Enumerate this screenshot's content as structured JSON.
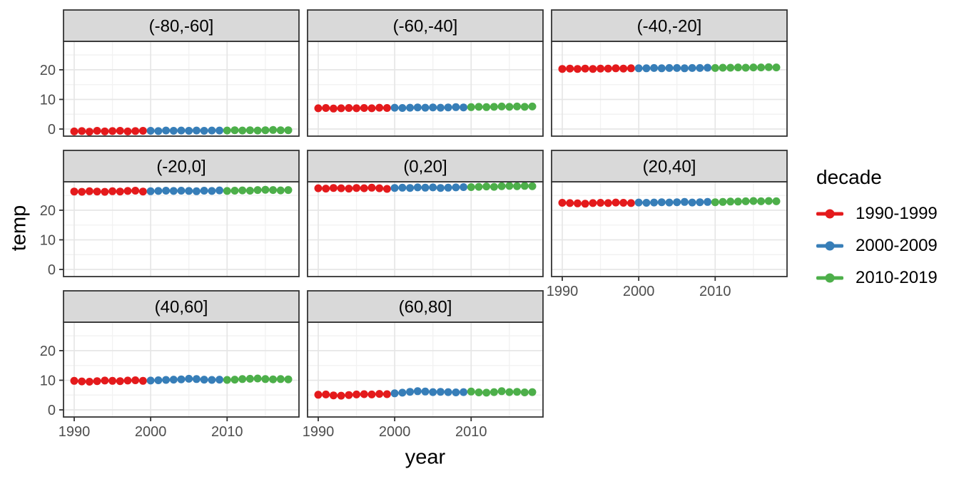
{
  "chart_data": {
    "type": "scatter",
    "title": "",
    "xlabel": "year",
    "ylabel": "temp",
    "facet_labels": [
      "(-80,-60]",
      "(-60,-40]",
      "(-40,-20]",
      "(-20,0]",
      "(0,20]",
      "(20,40]",
      "(40,60]",
      "(60,80]"
    ],
    "x": [
      1990,
      1991,
      1992,
      1993,
      1994,
      1995,
      1996,
      1997,
      1998,
      1999,
      2000,
      2001,
      2002,
      2003,
      2004,
      2005,
      2006,
      2007,
      2008,
      2009,
      2010,
      2011,
      2012,
      2013,
      2014,
      2015,
      2016,
      2017,
      2018
    ],
    "facets": [
      {
        "label": "(-80,-60]",
        "values": [
          -0.8,
          -0.7,
          -0.9,
          -0.6,
          -0.8,
          -0.7,
          -0.6,
          -0.8,
          -0.7,
          -0.6,
          -0.6,
          -0.7,
          -0.5,
          -0.6,
          -0.5,
          -0.6,
          -0.5,
          -0.6,
          -0.5,
          -0.5,
          -0.5,
          -0.4,
          -0.5,
          -0.4,
          -0.5,
          -0.4,
          -0.3,
          -0.4,
          -0.4
        ]
      },
      {
        "label": "(-60,-40]",
        "values": [
          7.0,
          7.1,
          6.9,
          7.0,
          7.1,
          7.0,
          7.1,
          7.0,
          7.2,
          7.1,
          7.2,
          7.1,
          7.2,
          7.3,
          7.2,
          7.3,
          7.2,
          7.3,
          7.4,
          7.3,
          7.4,
          7.5,
          7.4,
          7.5,
          7.6,
          7.5,
          7.6,
          7.5,
          7.6
        ]
      },
      {
        "label": "(-40,-20]",
        "values": [
          20.3,
          20.4,
          20.3,
          20.4,
          20.3,
          20.4,
          20.4,
          20.5,
          20.4,
          20.5,
          20.5,
          20.5,
          20.6,
          20.5,
          20.6,
          20.6,
          20.5,
          20.6,
          20.6,
          20.7,
          20.6,
          20.7,
          20.7,
          20.8,
          20.7,
          20.8,
          20.8,
          20.9,
          20.8
        ]
      },
      {
        "label": "(-20,0]",
        "values": [
          26.3,
          26.2,
          26.4,
          26.3,
          26.2,
          26.4,
          26.3,
          26.5,
          26.6,
          26.3,
          26.4,
          26.5,
          26.6,
          26.5,
          26.6,
          26.5,
          26.4,
          26.6,
          26.5,
          26.7,
          26.5,
          26.6,
          26.7,
          26.6,
          26.8,
          26.9,
          26.8,
          26.7,
          26.8
        ]
      },
      {
        "label": "(0,20]",
        "values": [
          27.4,
          27.3,
          27.5,
          27.4,
          27.3,
          27.5,
          27.4,
          27.6,
          27.4,
          27.2,
          27.5,
          27.6,
          27.5,
          27.7,
          27.6,
          27.7,
          27.5,
          27.6,
          27.7,
          27.8,
          27.8,
          27.9,
          28.0,
          27.9,
          28.1,
          28.2,
          28.1,
          28.2,
          28.1
        ]
      },
      {
        "label": "(20,40]",
        "values": [
          22.5,
          22.4,
          22.3,
          22.2,
          22.4,
          22.5,
          22.4,
          22.6,
          22.5,
          22.4,
          22.6,
          22.5,
          22.6,
          22.7,
          22.6,
          22.7,
          22.8,
          22.6,
          22.7,
          22.8,
          22.7,
          22.8,
          22.9,
          22.9,
          23.0,
          23.1,
          23.0,
          23.1,
          23.0
        ]
      },
      {
        "label": "(40,60]",
        "values": [
          9.8,
          9.6,
          9.5,
          9.7,
          9.9,
          9.8,
          9.7,
          9.9,
          10.0,
          9.8,
          9.9,
          10.0,
          10.1,
          10.2,
          10.3,
          10.5,
          10.4,
          10.2,
          10.1,
          10.2,
          10.1,
          10.2,
          10.4,
          10.5,
          10.6,
          10.4,
          10.3,
          10.4,
          10.3
        ]
      },
      {
        "label": "(60,80]",
        "values": [
          5.1,
          5.2,
          4.9,
          4.8,
          5.0,
          5.2,
          5.3,
          5.2,
          5.4,
          5.3,
          5.6,
          5.8,
          6.1,
          6.3,
          6.2,
          6.0,
          6.1,
          6.0,
          5.9,
          6.0,
          6.2,
          5.9,
          5.8,
          6.0,
          6.3,
          6.0,
          6.1,
          5.9,
          6.0
        ]
      }
    ],
    "series_split": [
      {
        "name": "1990-1999",
        "color": "#E41A1C",
        "from": 1990,
        "to": 1999
      },
      {
        "name": "2000-2009",
        "color": "#377EB8",
        "from": 2000,
        "to": 2009
      },
      {
        "name": "2010-2019",
        "color": "#4DAF4A",
        "from": 2010,
        "to": 2018
      }
    ],
    "x_ticks": [
      1990,
      2000,
      2010
    ],
    "y_ticks": [
      0,
      10,
      20
    ],
    "x_minor_ticks": [
      1995,
      2005,
      2015
    ],
    "y_minor_ticks": [
      5,
      15,
      25
    ],
    "xlim": [
      1988.6,
      2019.4
    ],
    "ylim": [
      -2.4,
      29.6
    ],
    "grid": true,
    "legend_position": "right"
  },
  "legend": {
    "title": "decade",
    "entries": [
      {
        "label": "1990-1999",
        "color": "#E41A1C"
      },
      {
        "label": "2000-2009",
        "color": "#377EB8"
      },
      {
        "label": "2010-2019",
        "color": "#4DAF4A"
      }
    ]
  },
  "colors": {
    "strip_bg": "#D9D9D9",
    "panel_border": "#333333",
    "grid_major": "#E6E6E6",
    "grid_minor": "#F2F2F2",
    "tick_label": "#4D4D4D",
    "tick_mark": "#333333",
    "text": "#000000",
    "background": "#FFFFFF"
  }
}
